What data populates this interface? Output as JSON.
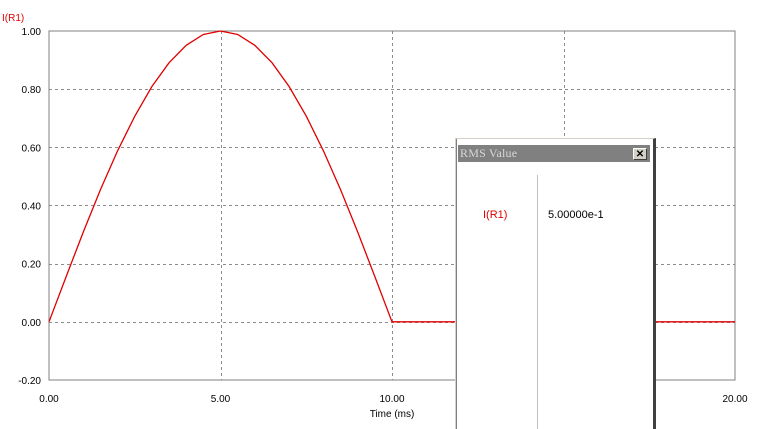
{
  "chart_data": {
    "type": "line",
    "series_title": "I(R1)",
    "xlabel": "Time (ms)",
    "ylabel": "",
    "xlim": [
      0,
      20
    ],
    "ylim": [
      -0.2,
      1.0
    ],
    "x_ticks": [
      0,
      5,
      10,
      15,
      20
    ],
    "x_tick_labels": [
      "0.00",
      "5.00",
      "10.00",
      "",
      "20.00"
    ],
    "y_ticks": [
      -0.2,
      0,
      0.2,
      0.4,
      0.6,
      0.8,
      1.0
    ],
    "y_tick_labels": [
      "-0.20",
      "0.00",
      "0.20",
      "0.40",
      "0.60",
      "0.80",
      "1.00"
    ],
    "grid": true,
    "series": [
      {
        "name": "I(R1)",
        "color": "#e00000",
        "x": [
          0,
          0.5,
          1,
          1.5,
          2,
          2.5,
          3,
          3.5,
          4,
          4.5,
          5,
          5.5,
          6,
          6.5,
          7,
          7.5,
          8,
          8.5,
          9,
          9.5,
          10,
          12,
          14,
          16,
          18,
          20
        ],
        "y": [
          0,
          0.156,
          0.309,
          0.454,
          0.588,
          0.707,
          0.809,
          0.891,
          0.951,
          0.988,
          1.0,
          0.988,
          0.951,
          0.891,
          0.809,
          0.707,
          0.588,
          0.454,
          0.309,
          0.156,
          0,
          0,
          0,
          0,
          0,
          0
        ]
      }
    ]
  },
  "rms_window": {
    "title": "RMS Value",
    "close_label": "✕",
    "trace_name": "I(R1)",
    "trace_value": "5.00000e-1"
  }
}
